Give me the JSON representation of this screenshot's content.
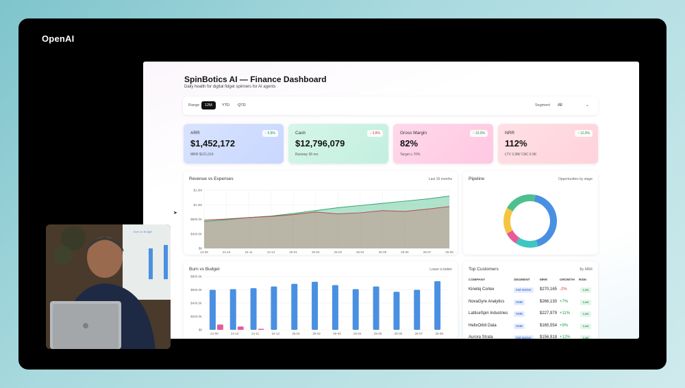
{
  "brand": "OpenAI",
  "header": {
    "title": "SpinBotics AI — Finance Dashboard",
    "subtitle": "Daily health for digital fidget spinners for AI agents"
  },
  "filters": {
    "range_label": "Range",
    "ranges": [
      "12M",
      "YTD",
      "QTD"
    ],
    "active_range": "12M",
    "segment_label": "Segment",
    "segment_value": "All"
  },
  "kpis": [
    {
      "label": "ARR",
      "value": "$1,452,172",
      "foot": "MRR $121,014",
      "delta": "6.8%",
      "direction": "up",
      "delta_color": "#1a9a4a"
    },
    {
      "label": "Cash",
      "value": "$12,796,079",
      "foot": "Runway 36 mo",
      "delta": "3.8%",
      "direction": "down",
      "delta_color": "#d23b3b"
    },
    {
      "label": "Gross Margin",
      "value": "82%",
      "foot": "Target ≥ 70%",
      "delta": "10.0%",
      "direction": "up",
      "delta_color": "#1a9a4a"
    },
    {
      "label": "NRR",
      "value": "112%",
      "foot": "LTV 3.3M/ CAC 6.5K",
      "delta": "12.0%",
      "direction": "up",
      "delta_color": "#1a9a4a"
    }
  ],
  "revenue_card": {
    "title": "Revenue vs Expenses",
    "note": "Last 18 months"
  },
  "pipeline_card": {
    "title": "Pipeline",
    "note": "Opportunities by stage"
  },
  "burn_card": {
    "title": "Burn vs Budget",
    "note": "Lower is better"
  },
  "customers_card": {
    "title": "Top Customers",
    "note": "By MRR",
    "columns": [
      "COMPANY",
      "SEGMENT",
      "MRR",
      "GROWTH",
      "RISK"
    ],
    "rows": [
      {
        "company": "Kinetiq Cortex",
        "segment": "Mid-Market",
        "mrr": "$270,165",
        "growth": "-2%",
        "risk": "Low"
      },
      {
        "company": "NovaGyre Analytics",
        "segment": "SMB",
        "mrr": "$266,130",
        "growth": "+7%",
        "risk": "Low"
      },
      {
        "company": "LatticeSpin Industries",
        "segment": "SMB",
        "mrr": "$227,979",
        "growth": "+11%",
        "risk": "Low"
      },
      {
        "company": "HelixOrbit Data",
        "segment": "SMB",
        "mrr": "$165,554",
        "growth": "+9%",
        "risk": "Low"
      },
      {
        "company": "Aurora Strata",
        "segment": "Mid-Market",
        "mrr": "$156,918",
        "growth": "+12%",
        "risk": "Low"
      }
    ]
  },
  "webcam_overlay": {
    "panel_text": "Burn vs Budget"
  },
  "colors": {
    "revenue": "#4fc08d",
    "expenses": "#c96b6b",
    "burn": "#4a90e2",
    "budget": "#e85a9a",
    "pipeline": [
      "#4a90e2",
      "#3ec7c0",
      "#e85a9a",
      "#f5c542",
      "#4fc08d"
    ]
  },
  "chart_data": [
    {
      "type": "area",
      "title": "Revenue vs Expenses",
      "x": [
        "24-09",
        "24-10",
        "24-11",
        "24-12",
        "25-01",
        "25-02",
        "25-03",
        "25-04",
        "25-05",
        "25-06",
        "25-07",
        "25-08"
      ],
      "yticks": [
        "$0",
        "$400.0K",
        "$800.0K",
        "$1.2M",
        "$1.6M"
      ],
      "ylim": [
        0,
        1600000
      ],
      "series": [
        {
          "name": "Revenue",
          "values": [
            740000,
            790000,
            850000,
            890000,
            960000,
            1040000,
            1120000,
            1180000,
            1240000,
            1300000,
            1360000,
            1440000
          ]
        },
        {
          "name": "Expenses",
          "values": [
            780000,
            810000,
            850000,
            880000,
            930000,
            1000000,
            950000,
            980000,
            1040000,
            1020000,
            1080000,
            1150000
          ]
        }
      ]
    },
    {
      "type": "pie",
      "title": "Pipeline",
      "values": [
        42,
        14,
        8,
        16,
        20
      ]
    },
    {
      "type": "bar",
      "title": "Burn vs Budget",
      "x": [
        "24-09",
        "24-10",
        "24-11",
        "24-12",
        "25-01",
        "25-02",
        "25-03",
        "25-04",
        "25-05",
        "25-06",
        "25-07",
        "25-08"
      ],
      "yticks": [
        "$0",
        "$200.0K",
        "$400.0K",
        "$600.0K",
        "$800.0K"
      ],
      "ylim": [
        0,
        800000
      ],
      "series": [
        {
          "name": "Burn",
          "values": [
            600000,
            610000,
            625000,
            650000,
            690000,
            720000,
            670000,
            610000,
            650000,
            570000,
            600000,
            730000
          ]
        },
        {
          "name": "Budget",
          "values": [
            80000,
            50000,
            15000,
            0,
            0,
            0,
            0,
            0,
            0,
            0,
            0,
            0
          ]
        }
      ]
    }
  ]
}
